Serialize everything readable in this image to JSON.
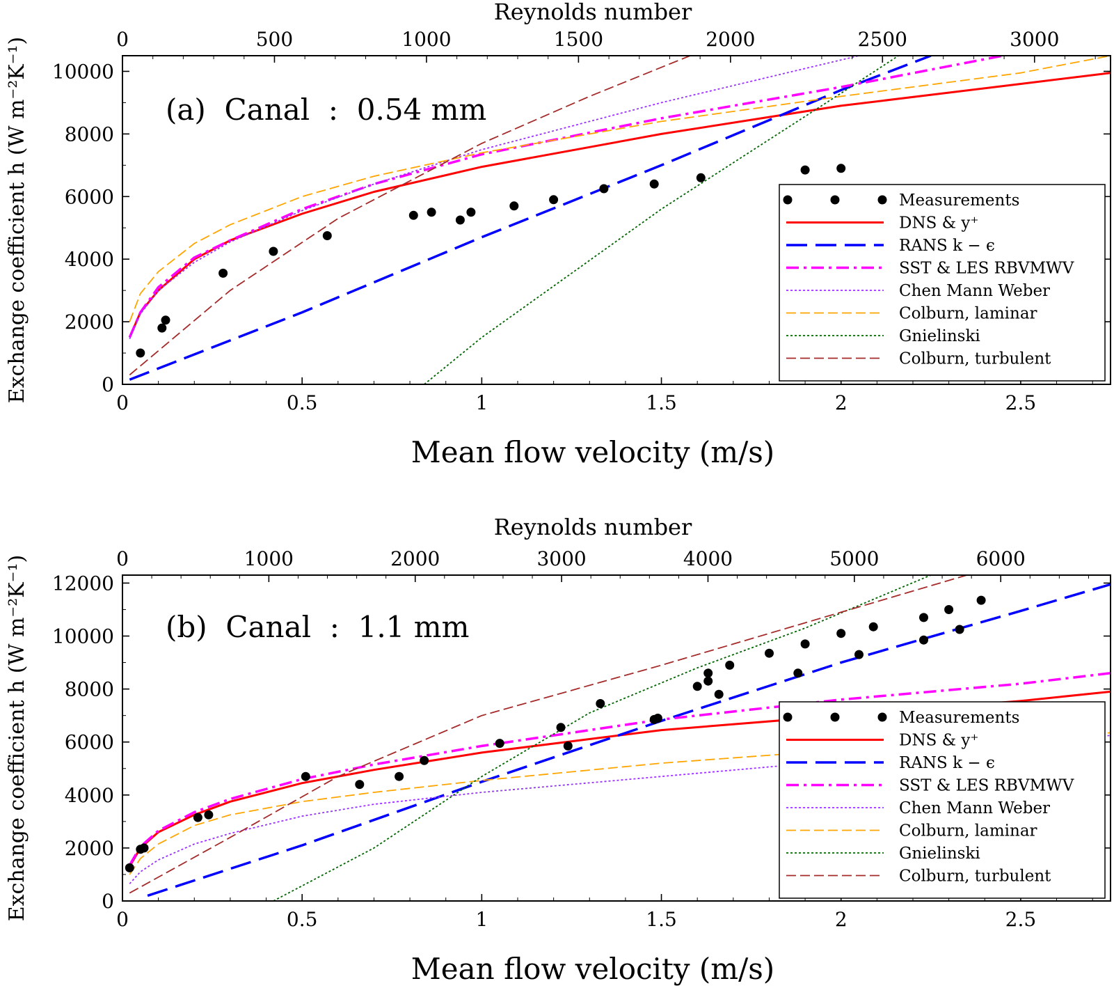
{
  "figure": {
    "ylabel": "Exchange coefficient h (W m⁻²K⁻¹)",
    "xlabel": "Mean flow velocity (m/s)",
    "top_xlabel": "Reynolds number"
  },
  "legend": {
    "placement": "lower-right",
    "entries": [
      {
        "label": "Measurements",
        "color": "#000000",
        "style": "marker"
      },
      {
        "label": "DNS & y⁺",
        "color": "#ff0000",
        "style": "solid"
      },
      {
        "label": "RANS k − ϵ",
        "color": "#0000ff",
        "style": "longdash"
      },
      {
        "label": "SST & LES RBVMWV",
        "color": "#ff00ff",
        "style": "dashdot"
      },
      {
        "label": "Chen Mann Weber",
        "color": "#9b30ff",
        "style": "dotted"
      },
      {
        "label": "Colburn, laminar",
        "color": "#ffa500",
        "style": "dashed"
      },
      {
        "label": "Gnielinski",
        "color": "#006400",
        "style": "dotted"
      },
      {
        "label": "Colburn, turbulent",
        "color": "#a52a2a",
        "style": "dashed"
      }
    ]
  },
  "chart_data": [
    {
      "type": "line",
      "panel": "(a)",
      "title": "(a)  Canal  :  0.54 mm",
      "xlabel": "Mean flow velocity (m/s)",
      "ylabel": "Exchange coefficient h (W m⁻²K⁻¹)",
      "top_xlabel": "Reynolds number",
      "xlim": [
        0,
        2.75
      ],
      "ylim": [
        0,
        10500
      ],
      "top_xlim": [
        0,
        3250
      ],
      "xticks": [
        "0",
        "0.5",
        "1",
        "1.5",
        "2",
        "2.5"
      ],
      "xtick_values": [
        0,
        0.5,
        1,
        1.5,
        2,
        2.5
      ],
      "yticks": [
        "0",
        "2000",
        "4000",
        "6000",
        "8000",
        "10000"
      ],
      "ytick_values": [
        0,
        2000,
        4000,
        6000,
        8000,
        10000
      ],
      "top_xticks": [
        "0",
        "500",
        "1000",
        "1500",
        "2000",
        "2500",
        "3000"
      ],
      "top_xtick_values": [
        0,
        500,
        1000,
        1500,
        2000,
        2500,
        3000
      ],
      "measurements": {
        "x": [
          0.05,
          0.11,
          0.12,
          0.28,
          0.42,
          0.57,
          0.81,
          0.86,
          0.94,
          0.97,
          1.09,
          1.2,
          1.34,
          1.48,
          1.61,
          1.9,
          2.0
        ],
        "y": [
          1000,
          1800,
          2050,
          3550,
          4250,
          4750,
          5400,
          5500,
          5250,
          5500,
          5700,
          5900,
          6250,
          6400,
          6600,
          6850,
          6900
        ]
      },
      "series": [
        {
          "name": "DNS & y⁺",
          "x": [
            0.02,
            0.05,
            0.1,
            0.2,
            0.3,
            0.5,
            0.7,
            1.0,
            1.5,
            2.0,
            2.5,
            2.75
          ],
          "y": [
            1500,
            2300,
            3000,
            4000,
            4600,
            5450,
            6150,
            6950,
            8000,
            8900,
            9600,
            9950
          ]
        },
        {
          "name": "RANS k − ϵ",
          "x": [
            0.02,
            0.5,
            1.0,
            1.5,
            2.0,
            2.25
          ],
          "y": [
            150,
            2300,
            4700,
            7000,
            9400,
            10500
          ]
        },
        {
          "name": "SST & LES RBVMWV",
          "x": [
            0.02,
            0.05,
            0.1,
            0.2,
            0.3,
            0.5,
            0.7,
            1.0,
            1.5,
            2.0,
            2.45
          ],
          "y": [
            1500,
            2300,
            3100,
            4050,
            4600,
            5600,
            6400,
            7350,
            8500,
            9500,
            10500
          ]
        },
        {
          "name": "Chen Mann Weber",
          "x": [
            0.02,
            0.05,
            0.1,
            0.2,
            0.3,
            0.5,
            0.7,
            1.0,
            1.5,
            2.05
          ],
          "y": [
            1450,
            2250,
            3000,
            3900,
            4550,
            5550,
            6400,
            7500,
            9000,
            10500
          ]
        },
        {
          "name": "Colburn, laminar",
          "x": [
            0.02,
            0.05,
            0.1,
            0.2,
            0.3,
            0.5,
            0.7,
            1.0,
            1.5,
            2.0,
            2.5,
            2.75
          ],
          "y": [
            2000,
            2900,
            3600,
            4500,
            5100,
            6000,
            6650,
            7400,
            8400,
            9200,
            9950,
            10500
          ]
        },
        {
          "name": "Gnielinski",
          "x": [
            0.84,
            1.0,
            1.5,
            2.0,
            2.16
          ],
          "y": [
            0,
            1500,
            5600,
            9300,
            10500
          ]
        },
        {
          "name": "Colburn, turbulent",
          "x": [
            0.02,
            0.3,
            0.6,
            1.0,
            1.3,
            1.58
          ],
          "y": [
            300,
            3000,
            5300,
            7700,
            9200,
            10500
          ]
        }
      ]
    },
    {
      "type": "line",
      "panel": "(b)",
      "title": "(b)  Canal  :  1.1 mm",
      "xlabel": "Mean flow velocity (m/s)",
      "ylabel": "Exchange coefficient h (W m⁻²K⁻¹)",
      "top_xlabel": "Reynolds number",
      "xlim": [
        0,
        2.75
      ],
      "ylim": [
        0,
        12300
      ],
      "top_xlim": [
        0,
        6750
      ],
      "xticks": [
        "0",
        "0.5",
        "1",
        "1.5",
        "2",
        "2.5"
      ],
      "xtick_values": [
        0,
        0.5,
        1,
        1.5,
        2,
        2.5
      ],
      "yticks": [
        "0",
        "2000",
        "4000",
        "6000",
        "8000",
        "10000",
        "12000"
      ],
      "ytick_values": [
        0,
        2000,
        4000,
        6000,
        8000,
        10000,
        12000
      ],
      "top_xticks": [
        "0",
        "1000",
        "2000",
        "3000",
        "4000",
        "5000",
        "6000"
      ],
      "top_xtick_values": [
        0,
        1000,
        2000,
        3000,
        4000,
        5000,
        6000
      ],
      "measurements": {
        "x": [
          0.02,
          0.05,
          0.06,
          0.21,
          0.24,
          0.51,
          0.66,
          0.77,
          0.84,
          1.05,
          1.22,
          1.24,
          1.33,
          1.48,
          1.49,
          1.6,
          1.63,
          1.63,
          1.66,
          1.69,
          1.8,
          1.88,
          1.9,
          2.0,
          2.05,
          2.09,
          2.23,
          2.23,
          2.3,
          2.33,
          2.39
        ],
        "y": [
          1250,
          1950,
          2000,
          3150,
          3250,
          4700,
          4400,
          4700,
          5300,
          5950,
          6550,
          5850,
          7450,
          6850,
          6900,
          8100,
          8300,
          8600,
          7800,
          8900,
          9350,
          8600,
          9700,
          10100,
          9300,
          10350,
          10700,
          9850,
          11000,
          10250,
          11350
        ]
      },
      "series": [
        {
          "name": "DNS & y⁺",
          "x": [
            0.02,
            0.05,
            0.1,
            0.2,
            0.3,
            0.5,
            0.7,
            1.0,
            1.5,
            2.0,
            2.5,
            2.75
          ],
          "y": [
            1300,
            2000,
            2600,
            3250,
            3750,
            4450,
            4950,
            5600,
            6450,
            7000,
            7550,
            7900
          ]
        },
        {
          "name": "RANS k − ϵ",
          "x": [
            0.07,
            0.5,
            1.0,
            1.5,
            2.0,
            2.5,
            2.75
          ],
          "y": [
            200,
            2100,
            4500,
            6800,
            9000,
            10950,
            11950
          ]
        },
        {
          "name": "SST & LES RBVMWV",
          "x": [
            0.02,
            0.05,
            0.1,
            0.2,
            0.3,
            0.5,
            0.7,
            1.0,
            1.5,
            2.0,
            2.5,
            2.75
          ],
          "y": [
            1350,
            2050,
            2650,
            3350,
            3850,
            4600,
            5150,
            5850,
            6850,
            7600,
            8200,
            8600
          ]
        },
        {
          "name": "Chen Mann Weber",
          "x": [
            0.02,
            0.05,
            0.1,
            0.2,
            0.3,
            0.5,
            0.7,
            1.0,
            1.5,
            2.0,
            2.5,
            2.75
          ],
          "y": [
            650,
            1100,
            1550,
            2150,
            2550,
            3200,
            3650,
            4100,
            4700,
            5300,
            5900,
            6250
          ]
        },
        {
          "name": "Colburn, laminar",
          "x": [
            0.02,
            0.05,
            0.1,
            0.2,
            0.3,
            0.5,
            0.7,
            1.0,
            1.5,
            2.0,
            2.5,
            2.75
          ],
          "y": [
            1000,
            1600,
            2150,
            2850,
            3250,
            3750,
            4100,
            4550,
            5200,
            5700,
            6100,
            6350
          ]
        },
        {
          "name": "Gnielinski",
          "x": [
            0.42,
            0.7,
            1.0,
            1.3,
            1.6,
            1.9,
            2.25
          ],
          "y": [
            0,
            2000,
            4700,
            7100,
            8800,
            10300,
            12300
          ]
        },
        {
          "name": "Colburn, turbulent",
          "x": [
            0.02,
            0.3,
            0.6,
            1.0,
            1.5,
            2.0,
            2.35
          ],
          "y": [
            300,
            2400,
            4700,
            7000,
            8900,
            10900,
            12300
          ]
        }
      ]
    }
  ]
}
